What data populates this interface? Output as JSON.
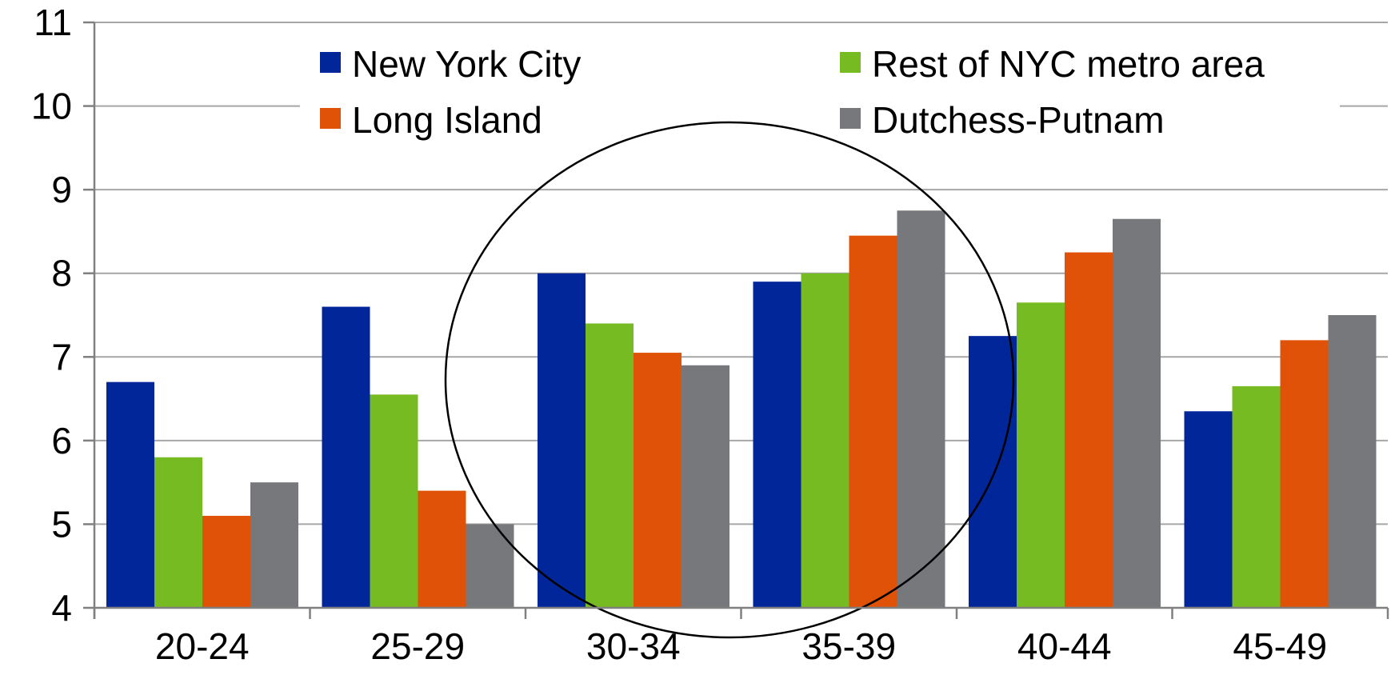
{
  "chart_data": {
    "type": "bar",
    "categories": [
      "20-24",
      "25-29",
      "30-34",
      "35-39",
      "40-44",
      "45-49"
    ],
    "series": [
      {
        "name": "New York City",
        "color": "#00269a",
        "values": [
          6.7,
          7.6,
          8.0,
          7.9,
          7.25,
          6.35
        ]
      },
      {
        "name": "Rest of NYC metro area",
        "color": "#77bb22",
        "values": [
          5.8,
          6.55,
          7.4,
          8.0,
          7.65,
          6.65
        ]
      },
      {
        "name": "Long Island",
        "color": "#e05207",
        "values": [
          5.1,
          5.4,
          7.05,
          8.45,
          8.25,
          7.2
        ]
      },
      {
        "name": "Dutchess-Putnam",
        "color": "#76787b",
        "values": [
          5.5,
          5.0,
          6.9,
          8.75,
          8.65,
          7.5
        ]
      }
    ],
    "ylim": [
      4,
      11
    ],
    "yticks": [
      4,
      5,
      6,
      7,
      8,
      9,
      10,
      11
    ],
    "grid": true,
    "legend_position": "top",
    "annotation": "ellipse around 30-34 and 35-39",
    "title": "",
    "xlabel": "",
    "ylabel": ""
  }
}
